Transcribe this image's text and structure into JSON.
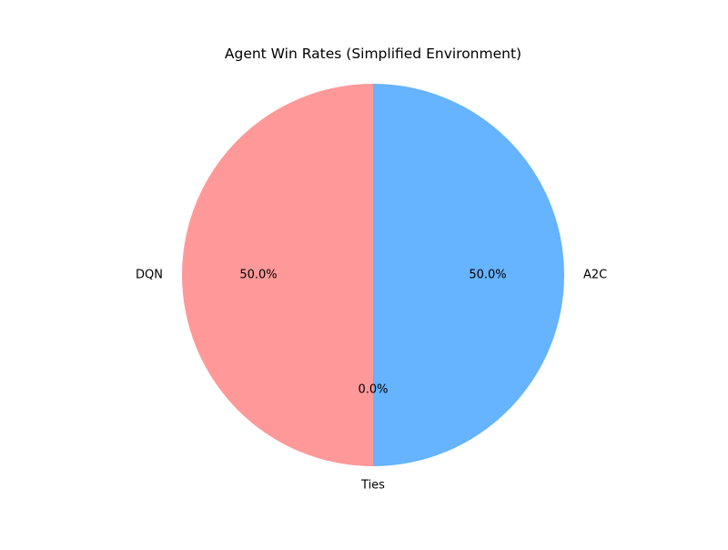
{
  "chart_data": {
    "type": "pie",
    "title": "Agent Win Rates (Simplified Environment)",
    "categories": [
      "A2C",
      "Ties",
      "DQN"
    ],
    "values": [
      50.0,
      0.0,
      50.0
    ],
    "percent_labels": [
      "50.0%",
      "0.0%",
      "50.0%"
    ],
    "colors": [
      "#66b3ff",
      "#99ff99",
      "#ff9999"
    ],
    "start_angle_deg": 90,
    "direction": "clockwise",
    "legend": "none"
  }
}
